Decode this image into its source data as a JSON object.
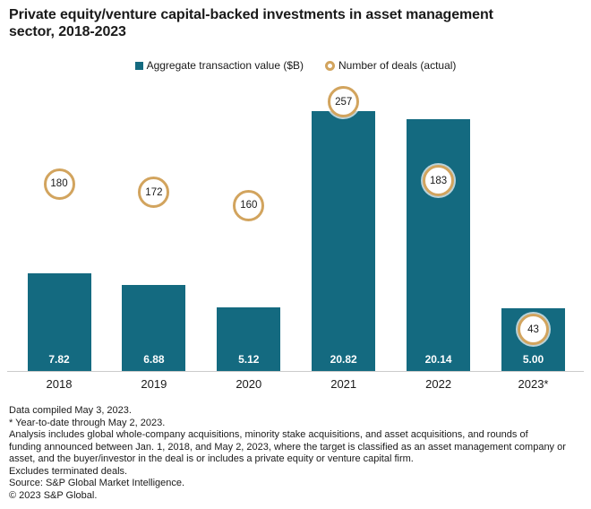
{
  "title_lines": [
    "Private equity/venture capital-backed investments in asset management",
    "sector, 2018-2023"
  ],
  "legend": {
    "bars_label": "Aggregate transaction value ($B)",
    "deals_label": "Number of deals (actual)"
  },
  "colors": {
    "bar": "#146A80",
    "ring": "#D2A45E",
    "text": "#1A1A1A",
    "axis": "#CBCBCB",
    "bar_value_text": "#FFFFFF"
  },
  "chart_data": {
    "type": "bar",
    "title": "Private equity/venture capital-backed investments in asset management sector, 2018-2023",
    "categories": [
      "2018",
      "2019",
      "2020",
      "2021",
      "2022",
      "2023*"
    ],
    "series": [
      {
        "name": "Aggregate transaction value ($B)",
        "type": "bar",
        "values": [
          7.82,
          6.88,
          5.12,
          20.82,
          20.14,
          5.0
        ],
        "value_labels": [
          "7.82",
          "6.88",
          "5.12",
          "20.82",
          "20.14",
          "5.00"
        ]
      },
      {
        "name": "Number of deals (actual)",
        "type": "point",
        "values": [
          180,
          172,
          160,
          257,
          183,
          43
        ]
      }
    ],
    "xlabel": "",
    "ylabel": "",
    "legend_position": "top",
    "grid": false,
    "y_axis_visible": false,
    "bar_value_label_position": "inside-bottom",
    "point_markers": "gold-ring-badges"
  },
  "footnotes": [
    "Data compiled May 3, 2023.",
    "* Year-to-date through May 2, 2023.",
    "Analysis includes global whole-company acquisitions, minority stake acquisitions, and asset acquisitions, and rounds of",
    "funding announced between Jan. 1, 2018, and May 2, 2023, where the target is classified as an asset management company or",
    "asset, and the buyer/investor in the deal is or includes a private equity or venture capital firm.",
    "Excludes terminated deals.",
    "Source: S&P Global Market Intelligence.",
    "© 2023 S&P Global."
  ]
}
